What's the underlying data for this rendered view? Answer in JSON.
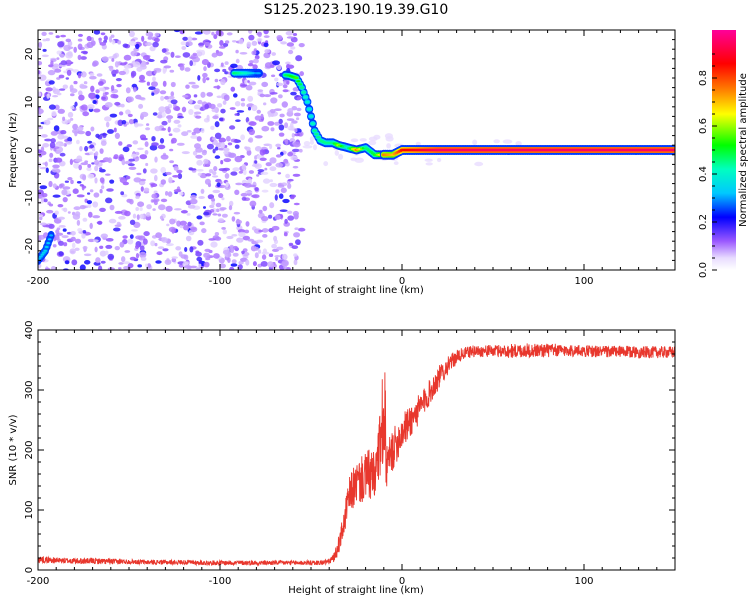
{
  "title": "S125.2023.190.19.39.G10",
  "chart_data": [
    {
      "type": "heatmap",
      "xlabel": "Height of straight line (km)",
      "ylabel": "Frequency (Hz)",
      "xlim": [
        -200,
        150
      ],
      "ylim": [
        -25,
        25
      ],
      "x_ticks": [
        -200,
        -100,
        0,
        100
      ],
      "y_ticks": [
        -20,
        -10,
        0,
        10,
        20
      ],
      "grid": false,
      "colorbar": {
        "label": "Normalized spectral amplitude",
        "ticks": [
          0.0,
          0.2,
          0.4,
          0.6,
          0.8
        ],
        "range": [
          0,
          1
        ],
        "colors": [
          "#ffffff",
          "#e0d0ff",
          "#8a2be2",
          "#0000ff",
          "#00ffff",
          "#00ff00",
          "#ffff00",
          "#ff7f00",
          "#ff0000",
          "#ff00ff"
        ]
      },
      "noise_region": {
        "x": [
          -200,
          -55
        ],
        "y": [
          -25,
          25
        ]
      },
      "ridge": {
        "x": [
          -200,
          -196,
          -192,
          -100,
          -95,
          -90,
          -85,
          -80,
          -72,
          -62,
          -58,
          -55,
          -52,
          -50,
          -48,
          -45,
          -42,
          -38,
          -35,
          -30,
          -25,
          -20,
          -15,
          -10,
          -5,
          0,
          10,
          20,
          40,
          60,
          80,
          100,
          120,
          150
        ],
        "y": [
          -23,
          -21,
          -17,
          16,
          16,
          16,
          16,
          16,
          16,
          15.5,
          15,
          13,
          10,
          7,
          4,
          2,
          1.5,
          1.5,
          1,
          0.5,
          0,
          0.5,
          -1,
          -1,
          -1,
          0,
          0,
          0,
          0,
          0,
          0,
          0,
          0,
          0
        ],
        "amplitude": [
          0.3,
          0.35,
          0.3,
          0.45,
          0.5,
          0.45,
          0.4,
          0.3,
          0.35,
          0.5,
          0.55,
          0.45,
          0.4,
          0.4,
          0.45,
          0.45,
          0.45,
          0.45,
          0.6,
          0.4,
          0.75,
          0.45,
          0.5,
          0.75,
          0.7,
          0.85,
          0.9,
          0.95,
          0.95,
          0.95,
          0.95,
          0.95,
          0.95,
          0.95
        ]
      }
    },
    {
      "type": "line",
      "xlabel": "Height of straight line (km)",
      "ylabel": "SNR (10 * v/v)",
      "xlim": [
        -200,
        150
      ],
      "ylim": [
        0,
        400
      ],
      "x_ticks": [
        -200,
        -100,
        0,
        100
      ],
      "y_ticks": [
        0,
        100,
        200,
        300,
        400
      ],
      "grid": false,
      "series": [
        {
          "color": "#e8372d",
          "x": [
            -200,
            -190,
            -180,
            -170,
            -160,
            -150,
            -140,
            -130,
            -120,
            -110,
            -100,
            -90,
            -80,
            -70,
            -60,
            -50,
            -45,
            -40,
            -37,
            -35,
            -32,
            -30,
            -28,
            -25,
            -22,
            -20,
            -18,
            -15,
            -12,
            -10,
            -8,
            -5,
            0,
            5,
            10,
            15,
            20,
            25,
            30,
            35,
            40,
            50,
            60,
            70,
            80,
            90,
            100,
            110,
            120,
            130,
            140,
            150
          ],
          "y": [
            18,
            16,
            15,
            15,
            14,
            14,
            13,
            13,
            13,
            12,
            12,
            12,
            12,
            12,
            12,
            12,
            12,
            14,
            22,
            40,
            75,
            110,
            130,
            145,
            150,
            155,
            160,
            150,
            210,
            170,
            175,
            200,
            230,
            250,
            270,
            295,
            320,
            340,
            355,
            362,
            365,
            365,
            365,
            366,
            366,
            366,
            365,
            364,
            364,
            363,
            363,
            363
          ],
          "noise": [
            6,
            5,
            5,
            5,
            5,
            4,
            4,
            4,
            4,
            4,
            4,
            4,
            4,
            4,
            4,
            4,
            4,
            5,
            8,
            15,
            20,
            30,
            35,
            35,
            40,
            40,
            45,
            45,
            60,
            45,
            40,
            35,
            30,
            28,
            25,
            22,
            20,
            15,
            12,
            10,
            10,
            10,
            12,
            12,
            12,
            10,
            10,
            10,
            10,
            10,
            10,
            10
          ]
        }
      ]
    }
  ]
}
